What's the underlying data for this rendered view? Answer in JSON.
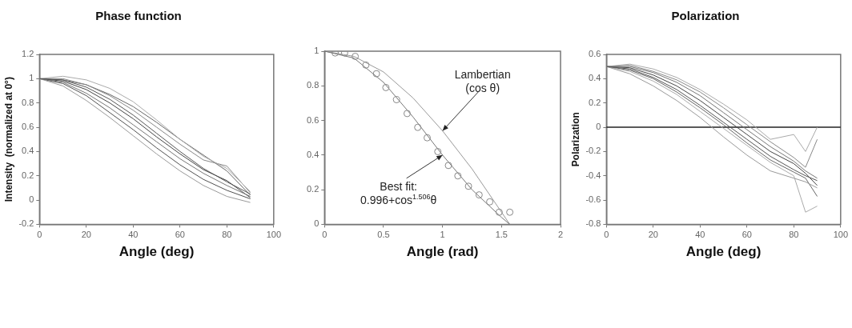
{
  "chart_data": [
    {
      "type": "line",
      "title": "Phase function",
      "xlabel": "Angle (deg)",
      "ylabel": "Intensity  (normalized at 0°)",
      "x": [
        0,
        10,
        20,
        30,
        40,
        50,
        60,
        70,
        80,
        90
      ],
      "xlim": [
        0,
        100
      ],
      "xticks": [
        0,
        20,
        40,
        60,
        80,
        100
      ],
      "ylim": [
        -0.2,
        1.2
      ],
      "yticks": [
        -0.2,
        0,
        0.2,
        0.4,
        0.6,
        0.8,
        1,
        1.2
      ],
      "grid": false,
      "legend": false,
      "marker": "none",
      "series": [
        {
          "color": "#555555",
          "values": [
            1,
            0.99,
            0.93,
            0.83,
            0.7,
            0.55,
            0.4,
            0.26,
            0.15,
            0.05
          ]
        },
        {
          "color": "#777777",
          "values": [
            1,
            0.97,
            0.88,
            0.76,
            0.62,
            0.48,
            0.34,
            0.22,
            0.12,
            0.03
          ]
        },
        {
          "color": "#aaaaaa",
          "values": [
            1,
            1.02,
            0.99,
            0.92,
            0.81,
            0.66,
            0.5,
            0.36,
            0.26,
            0.07
          ]
        },
        {
          "color": "#999999",
          "values": [
            1,
            0.94,
            0.82,
            0.68,
            0.53,
            0.38,
            0.24,
            0.12,
            0.03,
            -0.02
          ]
        },
        {
          "color": "#888888",
          "values": [
            1,
            1,
            0.95,
            0.86,
            0.74,
            0.6,
            0.46,
            0.33,
            0.28,
            0.06
          ]
        },
        {
          "color": "#444444",
          "values": [
            1,
            0.98,
            0.91,
            0.8,
            0.67,
            0.52,
            0.38,
            0.25,
            0.16,
            0.02
          ]
        },
        {
          "color": "#666666",
          "values": [
            1,
            0.99,
            0.95,
            0.87,
            0.77,
            0.64,
            0.5,
            0.37,
            0.24,
            0.04
          ]
        },
        {
          "color": "#505050",
          "values": [
            1,
            0.96,
            0.86,
            0.72,
            0.58,
            0.43,
            0.29,
            0.17,
            0.08,
            0.01
          ]
        }
      ]
    },
    {
      "type": "line",
      "xlabel": "Angle (rad)",
      "xlim": [
        0,
        2
      ],
      "xticks": [
        0,
        0.5,
        1,
        1.5,
        2
      ],
      "ylim": [
        0,
        1
      ],
      "yticks": [
        0,
        0.2,
        0.4,
        0.6,
        0.8,
        1
      ],
      "grid": false,
      "legend": false,
      "series": [
        {
          "type": "scatter",
          "marker": "circle",
          "color": "#888888",
          "x": [
            0.09,
            0.17,
            0.26,
            0.35,
            0.44,
            0.52,
            0.61,
            0.7,
            0.79,
            0.87,
            0.96,
            1.05,
            1.13,
            1.22,
            1.31,
            1.4,
            1.48,
            1.57
          ],
          "values": [
            0.99,
            0.99,
            0.97,
            0.92,
            0.87,
            0.79,
            0.72,
            0.64,
            0.56,
            0.5,
            0.42,
            0.34,
            0.28,
            0.22,
            0.17,
            0.13,
            0.07,
            0.07
          ]
        },
        {
          "marker": "none",
          "color": "#777777",
          "x": [
            0,
            0.25,
            0.5,
            0.75,
            1,
            1.25,
            1.5,
            1.57
          ],
          "values": [
            1,
            0.96,
            0.82,
            0.62,
            0.4,
            0.2,
            0.04,
            0
          ]
        },
        {
          "marker": "none",
          "color": "#999999",
          "x": [
            0,
            0.25,
            0.5,
            0.75,
            1,
            1.25,
            1.5,
            1.57
          ],
          "values": [
            1,
            0.97,
            0.88,
            0.73,
            0.54,
            0.32,
            0.07,
            0
          ]
        }
      ],
      "annotations": [
        {
          "text": "Lambertian\n(cos θ)",
          "x": 1,
          "y": 0.54
        },
        {
          "text": "Best fit:\n0.996+cos$^{1.506}$θ",
          "x": 1,
          "y": 0.4
        }
      ]
    },
    {
      "type": "line",
      "title": "Polarization",
      "xlabel": "Angle (deg)",
      "ylabel": "Polarization",
      "x": [
        0,
        10,
        20,
        30,
        40,
        50,
        60,
        70,
        80,
        85,
        90
      ],
      "xlim": [
        0,
        100
      ],
      "xticks": [
        0,
        20,
        40,
        60,
        80,
        100
      ],
      "ylim": [
        -0.8,
        0.6
      ],
      "yticks": [
        -0.8,
        -0.6,
        -0.4,
        -0.2,
        0,
        0.2,
        0.4,
        0.6
      ],
      "grid": false,
      "legend": false,
      "marker": "none",
      "ref_lines": [
        {
          "axis": "y",
          "value": 0,
          "color": "#222222"
        }
      ],
      "series": [
        {
          "color": "#555555",
          "values": [
            0.5,
            0.48,
            0.41,
            0.31,
            0.18,
            0.04,
            -0.1,
            -0.24,
            -0.35,
            -0.4,
            -0.44
          ]
        },
        {
          "color": "#777777",
          "values": [
            0.5,
            0.5,
            0.45,
            0.37,
            0.26,
            0.12,
            -0.02,
            -0.16,
            -0.28,
            -0.36,
            -0.42
          ]
        },
        {
          "color": "#aaaaaa",
          "values": [
            0.5,
            0.52,
            0.48,
            0.41,
            0.31,
            0.19,
            0.06,
            -0.1,
            -0.06,
            -0.2,
            0
          ]
        },
        {
          "color": "#999999",
          "values": [
            0.5,
            0.44,
            0.34,
            0.22,
            0.08,
            -0.08,
            -0.23,
            -0.36,
            -0.42,
            -0.45,
            -0.5
          ]
        },
        {
          "color": "#aaaaaa",
          "values": [
            0.5,
            0.46,
            0.38,
            0.27,
            0.13,
            -0.01,
            -0.15,
            -0.29,
            -0.4,
            -0.7,
            -0.65
          ]
        },
        {
          "color": "#444444",
          "values": [
            0.5,
            0.49,
            0.43,
            0.34,
            0.22,
            0.08,
            -0.06,
            -0.2,
            -0.3,
            -0.38,
            -0.48
          ]
        },
        {
          "color": "#666666",
          "values": [
            0.5,
            0.47,
            0.4,
            0.29,
            0.16,
            0.02,
            -0.13,
            -0.27,
            -0.37,
            -0.42,
            -0.57
          ]
        },
        {
          "color": "#888888",
          "values": [
            0.5,
            0.51,
            0.46,
            0.39,
            0.29,
            0.16,
            0.02,
            -0.12,
            -0.25,
            -0.33,
            -0.1
          ]
        }
      ]
    }
  ]
}
